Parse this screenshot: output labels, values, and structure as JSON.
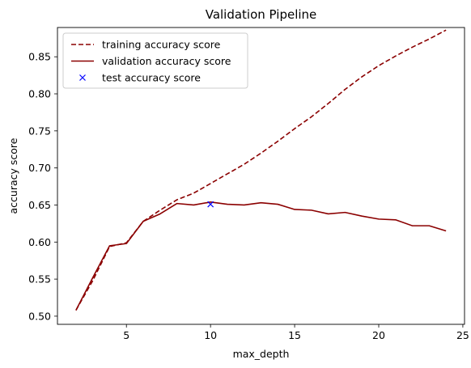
{
  "chart_data": {
    "type": "line",
    "title": "Validation Pipeline",
    "xlabel": "max_depth",
    "ylabel": "accuracy score",
    "xlim": [
      0.9,
      25.1
    ],
    "ylim": [
      0.489,
      0.8895
    ],
    "xticks": [
      5,
      10,
      15,
      20,
      25
    ],
    "yticks": [
      0.5,
      0.55,
      0.6,
      0.65,
      0.7,
      0.75,
      0.8,
      0.85
    ],
    "ytick_labels": [
      "0.50",
      "0.55",
      "0.60",
      "0.65",
      "0.70",
      "0.75",
      "0.80",
      "0.85"
    ],
    "grid": false,
    "legend_position": "top-left",
    "series": [
      {
        "name": "training accuracy score",
        "style": "dashed",
        "color": "#8b0000",
        "x": [
          2,
          3,
          4,
          5,
          6,
          7,
          8,
          9,
          10,
          11,
          12,
          13,
          14,
          15,
          16,
          17,
          18,
          19,
          20,
          21,
          22,
          23,
          24
        ],
        "y": [
          0.508,
          0.548,
          0.594,
          0.599,
          0.628,
          0.643,
          0.657,
          0.666,
          0.679,
          0.692,
          0.705,
          0.72,
          0.736,
          0.753,
          0.769,
          0.787,
          0.806,
          0.823,
          0.838,
          0.851,
          0.863,
          0.874,
          0.886
        ]
      },
      {
        "name": "validation accuracy score",
        "style": "solid",
        "color": "#8b0000",
        "x": [
          2,
          3,
          4,
          5,
          6,
          7,
          8,
          9,
          10,
          11,
          12,
          13,
          14,
          15,
          16,
          17,
          18,
          19,
          20,
          21,
          22,
          23,
          24
        ],
        "y": [
          0.508,
          0.552,
          0.595,
          0.598,
          0.628,
          0.638,
          0.652,
          0.65,
          0.654,
          0.651,
          0.65,
          0.653,
          0.651,
          0.644,
          0.643,
          0.638,
          0.64,
          0.635,
          0.631,
          0.63,
          0.622,
          0.622,
          0.615
        ]
      },
      {
        "name": "test accuracy score",
        "style": "marker-x",
        "color": "#0000ff",
        "x": [
          10
        ],
        "y": [
          0.651
        ]
      }
    ]
  }
}
